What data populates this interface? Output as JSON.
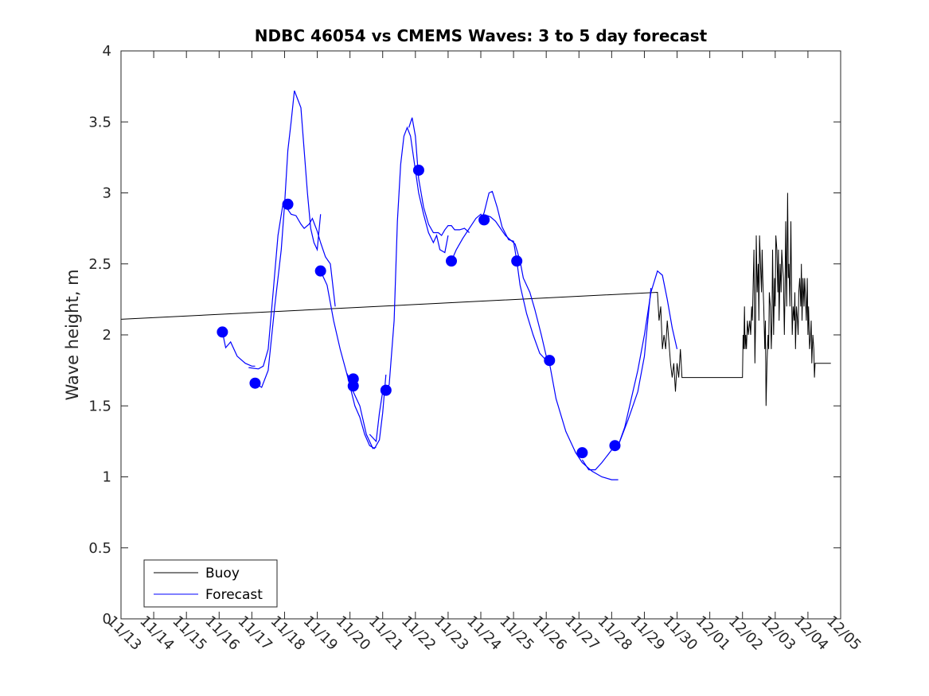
{
  "chart_data": {
    "type": "line",
    "title": "NDBC 46054 vs CMEMS Waves: 3 to 5 day forecast",
    "xlabel": "",
    "ylabel": "Wave height, m",
    "xlim": [
      0,
      22
    ],
    "ylim": [
      0,
      4
    ],
    "yticks": [
      0,
      0.5,
      1,
      1.5,
      2,
      2.5,
      3,
      3.5,
      4
    ],
    "ytick_labels": [
      "0",
      "0.5",
      "1",
      "1.5",
      "2",
      "2.5",
      "3",
      "3.5",
      "4"
    ],
    "xtick_labels": [
      "11/13",
      "11/14",
      "11/15",
      "11/16",
      "11/17",
      "11/18",
      "11/19",
      "11/20",
      "11/21",
      "11/22",
      "11/23",
      "11/24",
      "11/25",
      "11/26",
      "11/27",
      "11/28",
      "11/29",
      "11/30",
      "12/01",
      "12/02",
      "12/03",
      "12/04",
      "12/05"
    ],
    "x_units": "days since 11/13 00:00",
    "colors": {
      "buoy": "#000000",
      "forecast": "#0000ff",
      "axis": "#262626"
    },
    "legend": {
      "position": "bottom-left",
      "entries": [
        "Buoy",
        "Forecast"
      ]
    },
    "series": [
      {
        "name": "Buoy",
        "kind": "line",
        "x": [
          0,
          16.4,
          16.45,
          16.5,
          16.55,
          16.6,
          16.65,
          16.7,
          16.75,
          16.8,
          16.85,
          16.9,
          16.95,
          17.0,
          17.05,
          17.1,
          17.15,
          17.2,
          17.3,
          17.5,
          18.0,
          19.0,
          19.02,
          19.04,
          19.06,
          19.08,
          19.1,
          19.12,
          19.15,
          19.18,
          19.2,
          19.22,
          19.25,
          19.28,
          19.3,
          19.32,
          19.35,
          19.38,
          19.4,
          19.42,
          19.45,
          19.48,
          19.5,
          19.52,
          19.55,
          19.58,
          19.6,
          19.62,
          19.65,
          19.68,
          19.7,
          19.72,
          19.75,
          19.78,
          19.8,
          19.82,
          19.85,
          19.88,
          19.9,
          19.92,
          19.95,
          19.98,
          20.0,
          20.02,
          20.05,
          20.08,
          20.1,
          20.12,
          20.15,
          20.18,
          20.2,
          20.22,
          20.25,
          20.28,
          20.3,
          20.32,
          20.35,
          20.38,
          20.4,
          20.42,
          20.45,
          20.48,
          20.5,
          20.52,
          20.55,
          20.58,
          20.6,
          20.62,
          20.65,
          20.68,
          20.7,
          20.72,
          20.75,
          20.78,
          20.8,
          20.82,
          20.85,
          20.88,
          20.9,
          20.92,
          20.95,
          20.98,
          21.0,
          21.02,
          21.05,
          21.08,
          21.1,
          21.12,
          21.15,
          21.18,
          21.2,
          21.22,
          21.25,
          21.28,
          21.3,
          21.32,
          21.35,
          21.38,
          21.4,
          21.45,
          21.5,
          21.55,
          21.6,
          21.65,
          21.7
        ],
        "y": [
          2.11,
          2.3,
          2.1,
          2.2,
          1.9,
          2.0,
          1.9,
          2.1,
          1.95,
          1.8,
          1.7,
          1.8,
          1.6,
          1.8,
          1.7,
          1.9,
          1.7,
          1.7,
          1.7,
          1.7,
          1.7,
          1.7,
          2.0,
          1.9,
          2.2,
          1.9,
          2.0,
          1.9,
          2.1,
          2.0,
          2.05,
          2.1,
          2.0,
          2.2,
          2.1,
          2.3,
          2.6,
          1.8,
          2.1,
          2.7,
          2.3,
          2.5,
          2.1,
          2.7,
          2.5,
          2.3,
          2.6,
          2.4,
          2.2,
          1.9,
          2.1,
          1.5,
          1.8,
          2.0,
          1.9,
          2.3,
          2.2,
          1.9,
          2.1,
          2.6,
          2.0,
          2.4,
          2.2,
          2.7,
          2.6,
          2.3,
          2.6,
          2.1,
          2.5,
          2.3,
          2.6,
          2.5,
          2.4,
          2.0,
          2.3,
          2.8,
          2.2,
          3.0,
          2.4,
          2.5,
          2.2,
          2.8,
          2.3,
          2.0,
          2.2,
          2.1,
          2.3,
          1.9,
          2.2,
          2.1,
          2.0,
          2.3,
          2.4,
          2.2,
          2.5,
          2.1,
          2.4,
          2.2,
          2.4,
          2.3,
          2.1,
          2.4,
          2.0,
          2.2,
          1.9,
          2.0,
          2.1,
          1.8,
          2.0,
          1.9,
          1.7,
          1.8,
          1.8,
          1.8,
          1.8,
          1.8,
          1.8,
          1.8,
          1.8,
          1.8,
          1.8,
          1.8,
          1.8,
          1.8,
          1.8
        ]
      },
      {
        "name": "Forecast",
        "kind": "segments",
        "segments": [
          {
            "x": [
              3.1,
              3.2,
              3.35,
              3.55,
              3.8,
              4.0,
              4.1
            ],
            "y": [
              2.02,
              1.91,
              1.95,
              1.85,
              1.8,
              1.78,
              1.78
            ]
          },
          {
            "x": [
              4.1,
              4.3,
              4.5,
              4.7,
              4.9,
              5.0,
              5.1,
              5.2,
              5.3,
              5.5,
              5.6,
              5.7,
              5.8,
              5.9,
              6.0,
              6.1
            ],
            "y": [
              1.66,
              1.63,
              1.75,
              2.2,
              2.6,
              2.92,
              3.3,
              3.5,
              3.72,
              3.6,
              3.3,
              3.0,
              2.75,
              2.65,
              2.6,
              2.85
            ]
          },
          {
            "x": [
              3.9,
              4.2,
              4.35,
              4.5,
              4.65,
              4.8,
              4.95,
              5.05,
              5.2,
              5.35,
              5.5,
              5.6,
              5.75,
              5.85,
              6.0,
              6.1,
              6.25,
              6.4,
              6.55
            ],
            "y": [
              1.77,
              1.76,
              1.78,
              1.9,
              2.3,
              2.7,
              2.92,
              2.9,
              2.85,
              2.84,
              2.78,
              2.75,
              2.78,
              2.82,
              2.73,
              2.65,
              2.55,
              2.5,
              2.2
            ]
          },
          {
            "x": [
              6.1,
              6.3,
              6.5,
              6.7,
              6.9,
              7.0,
              7.1,
              7.3,
              7.5,
              7.7,
              7.8
            ],
            "y": [
              2.45,
              2.35,
              2.1,
              1.9,
              1.73,
              1.69,
              1.6,
              1.5,
              1.3,
              1.2,
              1.21
            ]
          },
          {
            "x": [
              6.9,
              7.0,
              7.15,
              7.3,
              7.45,
              7.6,
              7.75,
              7.9,
              8.0,
              8.1
            ],
            "y": [
              1.73,
              1.64,
              1.5,
              1.42,
              1.3,
              1.22,
              1.2,
              1.26,
              1.45,
              1.72
            ]
          },
          {
            "x": [
              7.6,
              7.8,
              7.9,
              8.0,
              8.1,
              8.2,
              8.35,
              8.45,
              8.55,
              8.65,
              8.75,
              8.85,
              9.0,
              9.1,
              9.25,
              9.4,
              9.55,
              9.65,
              9.75,
              9.9,
              10.0
            ],
            "y": [
              1.3,
              1.25,
              1.45,
              1.6,
              1.61,
              1.65,
              2.1,
              2.8,
              3.2,
              3.4,
              3.46,
              3.4,
              3.16,
              3.0,
              2.85,
              2.72,
              2.65,
              2.7,
              2.6,
              2.58,
              2.7
            ]
          },
          {
            "x": [
              8.8,
              8.9,
              9.0,
              9.1,
              9.25,
              9.4,
              9.55,
              9.7,
              9.8,
              9.9,
              10.0,
              10.1,
              10.2,
              10.35,
              10.5,
              10.65
            ],
            "y": [
              3.46,
              3.53,
              3.4,
              3.1,
              2.9,
              2.78,
              2.72,
              2.72,
              2.7,
              2.74,
              2.77,
              2.77,
              2.74,
              2.74,
              2.75,
              2.72
            ]
          },
          {
            "x": [
              10.1,
              10.25,
              10.45,
              10.65,
              10.85,
              11.0,
              11.1,
              11.2,
              11.3,
              11.45,
              11.6,
              11.75,
              11.9,
              12.05,
              12.2,
              12.3,
              12.5,
              12.65,
              12.85,
              13.0
            ],
            "y": [
              2.52,
              2.6,
              2.68,
              2.75,
              2.82,
              2.85,
              2.81,
              2.84,
              2.83,
              2.8,
              2.75,
              2.7,
              2.67,
              2.64,
              2.52,
              2.4,
              2.3,
              2.18,
              2.0,
              1.85
            ]
          },
          {
            "x": [
              11.0,
              11.1,
              11.25,
              11.35,
              11.5,
              11.65,
              11.85,
              12.0,
              12.1,
              12.2,
              12.4,
              12.6,
              12.8,
              13.0,
              13.1,
              13.3,
              13.6,
              13.9,
              14.1,
              14.4,
              14.7,
              15.0,
              15.2
            ],
            "y": [
              2.81,
              2.86,
              3.0,
              3.01,
              2.9,
              2.76,
              2.67,
              2.66,
              2.52,
              2.35,
              2.15,
              2.0,
              1.87,
              1.82,
              1.8,
              1.55,
              1.32,
              1.17,
              1.1,
              1.04,
              1.0,
              0.98,
              0.98
            ]
          },
          {
            "x": [
              14.1,
              14.3,
              14.5,
              14.7,
              15.0,
              15.2,
              15.5,
              15.8,
              16.0,
              16.2
            ],
            "y": [
              1.12,
              1.05,
              1.05,
              1.1,
              1.19,
              1.22,
              1.4,
              1.6,
              1.85,
              2.33
            ]
          },
          {
            "x": [
              15.0,
              15.2,
              15.4,
              15.6,
              15.8,
              16.0,
              16.2,
              16.4,
              16.55,
              16.7,
              16.85,
              17.0
            ],
            "y": [
              1.19,
              1.22,
              1.35,
              1.55,
              1.75,
              2.0,
              2.3,
              2.45,
              2.42,
              2.25,
              2.05,
              1.9
            ]
          }
        ],
        "markers": {
          "x": [
            3.1,
            4.1,
            5.1,
            6.1,
            7.1,
            7.1,
            8.1,
            9.1,
            10.1,
            11.1,
            12.1,
            13.1,
            14.1,
            15.1
          ],
          "y": [
            2.02,
            1.66,
            2.92,
            2.45,
            1.69,
            1.64,
            1.61,
            3.16,
            2.52,
            2.81,
            2.52,
            1.82,
            1.17,
            1.22
          ]
        }
      }
    ]
  }
}
